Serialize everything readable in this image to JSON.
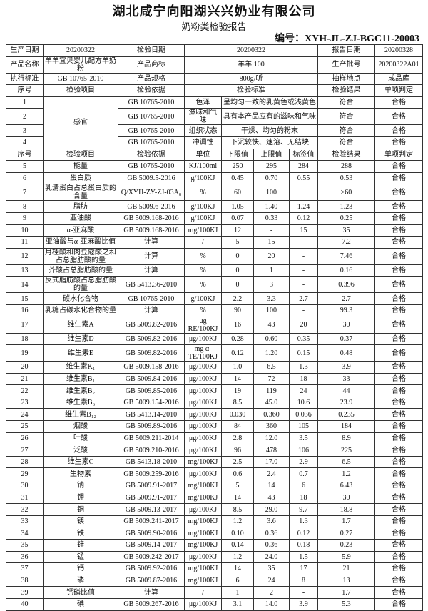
{
  "header": {
    "company": "湖北咸宁向阳湖兴兴奶业有限公司",
    "title": "奶粉类检验报告",
    "code": "编号：XYH-JL-ZJ-BGC11-20003"
  },
  "info": [
    [
      "生产日期",
      "20200322",
      "检验日期",
      "20200322",
      "报告日期",
      "20200328"
    ],
    [
      "产品名称",
      "羊羊宜贝婴儿配方羊奶粉",
      "产品商标",
      "羊羊 100",
      "生产批号",
      "20200322A01"
    ],
    [
      "执行标准",
      "GB 10765-2010",
      "产品规格",
      "800g/听",
      "抽样地点",
      "成品库"
    ]
  ],
  "sensory": {
    "columns": [
      "序号",
      "检验项目",
      "检验依据",
      "检验标准",
      "检验结果",
      "单项判定"
    ],
    "item": "感官",
    "rows": [
      [
        "1",
        "GB 10765-2010",
        "色泽",
        "呈均匀一致的乳黄色或浅黄色",
        "符合",
        "合格"
      ],
      [
        "2",
        "GB 10765-2010",
        "滋味和气味",
        "具有本产品应有的滋味和气味",
        "符合",
        "合格"
      ],
      [
        "3",
        "GB 10765-2010",
        "组织状态",
        "干燥、均匀的粉末",
        "符合",
        "合格"
      ],
      [
        "4",
        "GB 10765-2010",
        "冲调性",
        "下沉较快、速溶、无结块",
        "符合",
        "合格"
      ]
    ]
  },
  "table": {
    "columns": [
      "序号",
      "检验项目",
      "检验依据",
      "单位",
      "下限值",
      "上限值",
      "标签值",
      "检验结果",
      "单项判定"
    ],
    "rows": [
      [
        "5",
        "能量",
        "GB 10765-2010",
        "KJ/100ml",
        "250",
        "295",
        "284",
        "288",
        "合格"
      ],
      [
        "6",
        "蛋白质",
        "GB 5009.5-2016",
        "g/100KJ",
        "0.45",
        "0.70",
        "0.55",
        "0.53",
        "合格"
      ],
      [
        "7",
        "乳清蛋白占总蛋白质的含量",
        "Q/XYH-ZY-ZJ-03A₈",
        "%",
        "60",
        "100",
        null,
        ">60",
        "合格"
      ],
      [
        "8",
        "脂肪",
        "GB 5009.6-2016",
        "g/100KJ",
        "1.05",
        "1.40",
        "1.24",
        "1.23",
        "合格"
      ],
      [
        "9",
        "亚油酸",
        "GB 5009.168-2016",
        "g/100KJ",
        "0.07",
        "0.33",
        "0.12",
        "0.25",
        "合格"
      ],
      [
        "10",
        "α-亚麻酸",
        "GB 5009.168-2016",
        "mg/100KJ",
        "12",
        "-",
        "15",
        "35",
        "合格"
      ],
      [
        "11",
        "亚油酸与α-亚麻酸比值",
        "计算",
        "/",
        "5",
        "15",
        "-",
        "7.2",
        "合格"
      ],
      [
        "12",
        "月桂酸和肉豆蔻酸之和占总脂肪酸的量",
        "计算",
        "%",
        "0",
        "20",
        "-",
        "7.46",
        "合格"
      ],
      [
        "13",
        "芥酸占总脂肪酸的量",
        "计算",
        "%",
        "0",
        "1",
        "-",
        "0.16",
        "合格"
      ],
      [
        "14",
        "反式脂肪酸占总脂肪酸的量",
        "GB 5413.36-2010",
        "%",
        "0",
        "3",
        "-",
        "0.396",
        "合格"
      ],
      [
        "15",
        "碳水化合物",
        "GB 10765-2010",
        "g/100KJ",
        "2.2",
        "3.3",
        "2.7",
        "2.7",
        "合格"
      ],
      [
        "16",
        "乳糖占碳水化合物的量",
        "计算",
        "%",
        "90",
        "100",
        "-",
        "99.3",
        "合格"
      ],
      [
        "17",
        "维生素A",
        "GB 5009.82-2016",
        "μg RE/100KJ",
        "16",
        "43",
        "20",
        "30",
        "合格"
      ],
      [
        "18",
        "维生素D",
        "GB 5009.82-2016",
        "μg/100KJ",
        "0.28",
        "0.60",
        "0.35",
        "0.37",
        "合格"
      ],
      [
        "19",
        "维生素E",
        "GB 5009.82-2016",
        "mg α-TE/100KJ",
        "0.12",
        "1.20",
        "0.15",
        "0.48",
        "合格"
      ],
      [
        "20",
        "维生素K₁",
        "GB 5009.158-2016",
        "μg/100KJ",
        "1.0",
        "6.5",
        "1.3",
        "3.9",
        "合格"
      ],
      [
        "21",
        "维生素B₁",
        "GB 5009.84-2016",
        "μg/100KJ",
        "14",
        "72",
        "18",
        "33",
        "合格"
      ],
      [
        "22",
        "维生素B₂",
        "GB 5009.85-2016",
        "μg/100KJ",
        "19",
        "119",
        "24",
        "44",
        "合格"
      ],
      [
        "23",
        "维生素B₆",
        "GB 5009.154-2016",
        "μg/100KJ",
        "8.5",
        "45.0",
        "10.6",
        "23.9",
        "合格"
      ],
      [
        "24",
        "维生素B₁₂",
        "GB 5413.14-2010",
        "μg/100KJ",
        "0.030",
        "0.360",
        "0.036",
        "0.235",
        "合格"
      ],
      [
        "25",
        "烟酸",
        "GB 5009.89-2016",
        "μg/100KJ",
        "84",
        "360",
        "105",
        "184",
        "合格"
      ],
      [
        "26",
        "叶酸",
        "GB 5009.211-2014",
        "μg/100KJ",
        "2.8",
        "12.0",
        "3.5",
        "8.9",
        "合格"
      ],
      [
        "27",
        "泛酸",
        "GB 5009.210-2016",
        "μg/100KJ",
        "96",
        "478",
        "106",
        "225",
        "合格"
      ],
      [
        "28",
        "维生素C",
        "GB 5413.18-2010",
        "mg/100KJ",
        "2.5",
        "17.0",
        "2.9",
        "6.5",
        "合格"
      ],
      [
        "29",
        "生物素",
        "GB 5009.259-2016",
        "μg/100KJ",
        "0.6",
        "2.4",
        "0.7",
        "1.2",
        "合格"
      ],
      [
        "30",
        "钠",
        "GB 5009.91-2017",
        "mg/100KJ",
        "5",
        "14",
        "6",
        "6.43",
        "合格"
      ],
      [
        "31",
        "钾",
        "GB 5009.91-2017",
        "mg/100KJ",
        "14",
        "43",
        "18",
        "30",
        "合格"
      ],
      [
        "32",
        "铜",
        "GB 5009.13-2017",
        "μg/100KJ",
        "8.5",
        "29.0",
        "9.7",
        "18.8",
        "合格"
      ],
      [
        "33",
        "镁",
        "GB 5009.241-2017",
        "mg/100KJ",
        "1.2",
        "3.6",
        "1.3",
        "1.7",
        "合格"
      ],
      [
        "34",
        "铁",
        "GB 5009.90-2016",
        "mg/100KJ",
        "0.10",
        "0.36",
        "0.12",
        "0.27",
        "合格"
      ],
      [
        "35",
        "锌",
        "GB 5009.14-2017",
        "mg/100KJ",
        "0.14",
        "0.36",
        "0.18",
        "0.23",
        "合格"
      ],
      [
        "36",
        "锰",
        "GB 5009.242-2017",
        "μg/100KJ",
        "1.2",
        "24.0",
        "1.5",
        "5.9",
        "合格"
      ],
      [
        "37",
        "钙",
        "GB 5009.92-2016",
        "mg/100KJ",
        "14",
        "35",
        "17",
        "21",
        "合格"
      ],
      [
        "38",
        "磷",
        "GB 5009.87-2016",
        "mg/100KJ",
        "6",
        "24",
        "8",
        "13",
        "合格"
      ],
      [
        "39",
        "钙磷比值",
        "计算",
        "/",
        "1",
        "2",
        "-",
        "1.7",
        "合格"
      ],
      [
        "40",
        "碘",
        "GB 5009.267-2016",
        "μg/100KJ",
        "3.1",
        "14.0",
        "3.9",
        "5.3",
        "合格"
      ]
    ]
  }
}
